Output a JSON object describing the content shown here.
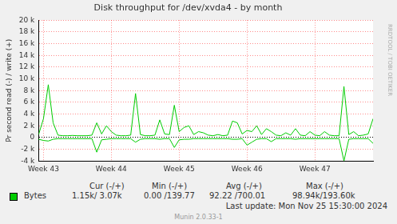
{
  "chart_data": {
    "type": "line",
    "title": "Disk throughput for /dev/xvda4 - by month",
    "y_label": "Pr second read (-) / write (+)",
    "categories": [
      null,
      "Week 43",
      null,
      null,
      null,
      null,
      null,
      null,
      null,
      null,
      null,
      null,
      null,
      null,
      null,
      "Week 44",
      null,
      null,
      null,
      null,
      null,
      null,
      null,
      null,
      null,
      null,
      null,
      null,
      null,
      "Week 45",
      null,
      null,
      null,
      null,
      null,
      null,
      null,
      null,
      null,
      null,
      null,
      null,
      null,
      "Week 46",
      null,
      null,
      null,
      null,
      null,
      null,
      null,
      null,
      null,
      null,
      null,
      null,
      null,
      "Week 47",
      null,
      null,
      null,
      null,
      null,
      null,
      null,
      null,
      null,
      null,
      null,
      null
    ],
    "series": [
      {
        "name": "Bytes",
        "color": "#00cc00",
        "values": [
          500,
          3200,
          9000,
          2500,
          400,
          300,
          300,
          350,
          300,
          300,
          300,
          400,
          2500,
          600,
          2000,
          1000,
          400,
          300,
          300,
          400,
          7500,
          500,
          300,
          300,
          400,
          3000,
          600,
          500,
          5500,
          1000,
          1700,
          2000,
          500,
          1000,
          800,
          400,
          300,
          500,
          300,
          400,
          2800,
          2500,
          600,
          1200,
          1000,
          2000,
          500,
          1500,
          1000,
          400,
          300,
          800,
          400,
          1500,
          400,
          300,
          1000,
          400,
          300,
          1000,
          400,
          300,
          300,
          8700,
          500,
          1000,
          300,
          400,
          600,
          3200
        ],
        "negative_values": [
          -300,
          -500,
          -600,
          -300,
          -200,
          -200,
          -200,
          -200,
          -200,
          -200,
          -200,
          -200,
          -2500,
          -400,
          -300,
          -200,
          -200,
          -200,
          -200,
          -200,
          -800,
          -300,
          -200,
          -200,
          -200,
          -300,
          -200,
          -200,
          -1700,
          -400,
          -300,
          -300,
          -200,
          -200,
          -200,
          -200,
          -200,
          -200,
          -200,
          -200,
          -300,
          -300,
          -200,
          -1300,
          -800,
          -300,
          -200,
          -200,
          -700,
          -200,
          -200,
          -200,
          -200,
          -300,
          -200,
          -200,
          -200,
          -200,
          -200,
          -200,
          -200,
          -200,
          -200,
          -4000,
          -300,
          -200,
          -200,
          -200,
          -200,
          -1000
        ]
      }
    ],
    "ylim": [
      -4000,
      20000
    ],
    "yticks": [
      {
        "value": -4000,
        "label": "-4 k"
      },
      {
        "value": -2000,
        "label": "-2 k"
      },
      0,
      {
        "value": 2000,
        "label": "2 k"
      },
      {
        "value": 4000,
        "label": "4 k"
      },
      {
        "value": 6000,
        "label": "6 k"
      },
      {
        "value": 8000,
        "label": "8 k"
      },
      {
        "value": 10000,
        "label": "10 k"
      },
      {
        "value": 12000,
        "label": "12 k"
      },
      {
        "value": 14000,
        "label": "14 k"
      },
      {
        "value": 16000,
        "label": "16 k"
      },
      {
        "value": 18000,
        "label": "18 k"
      },
      {
        "value": 20000,
        "label": "20 k"
      }
    ],
    "grid": true,
    "summary": {
      "headers": [
        "Cur (-/+)",
        "Min (-/+)",
        "Avg (-/+)",
        "Max (-/+)"
      ],
      "values": [
        "1.15k/ 3.07k",
        "0.00 /139.77",
        "92.22 /700.01",
        "98.94k/193.60k"
      ]
    },
    "last_update": "Last update:  Mon Nov 25 15:30:00 2024",
    "footer": "Munin 2.0.33-1",
    "watermark": "RRDTOOL / TOBI OETIKER"
  }
}
